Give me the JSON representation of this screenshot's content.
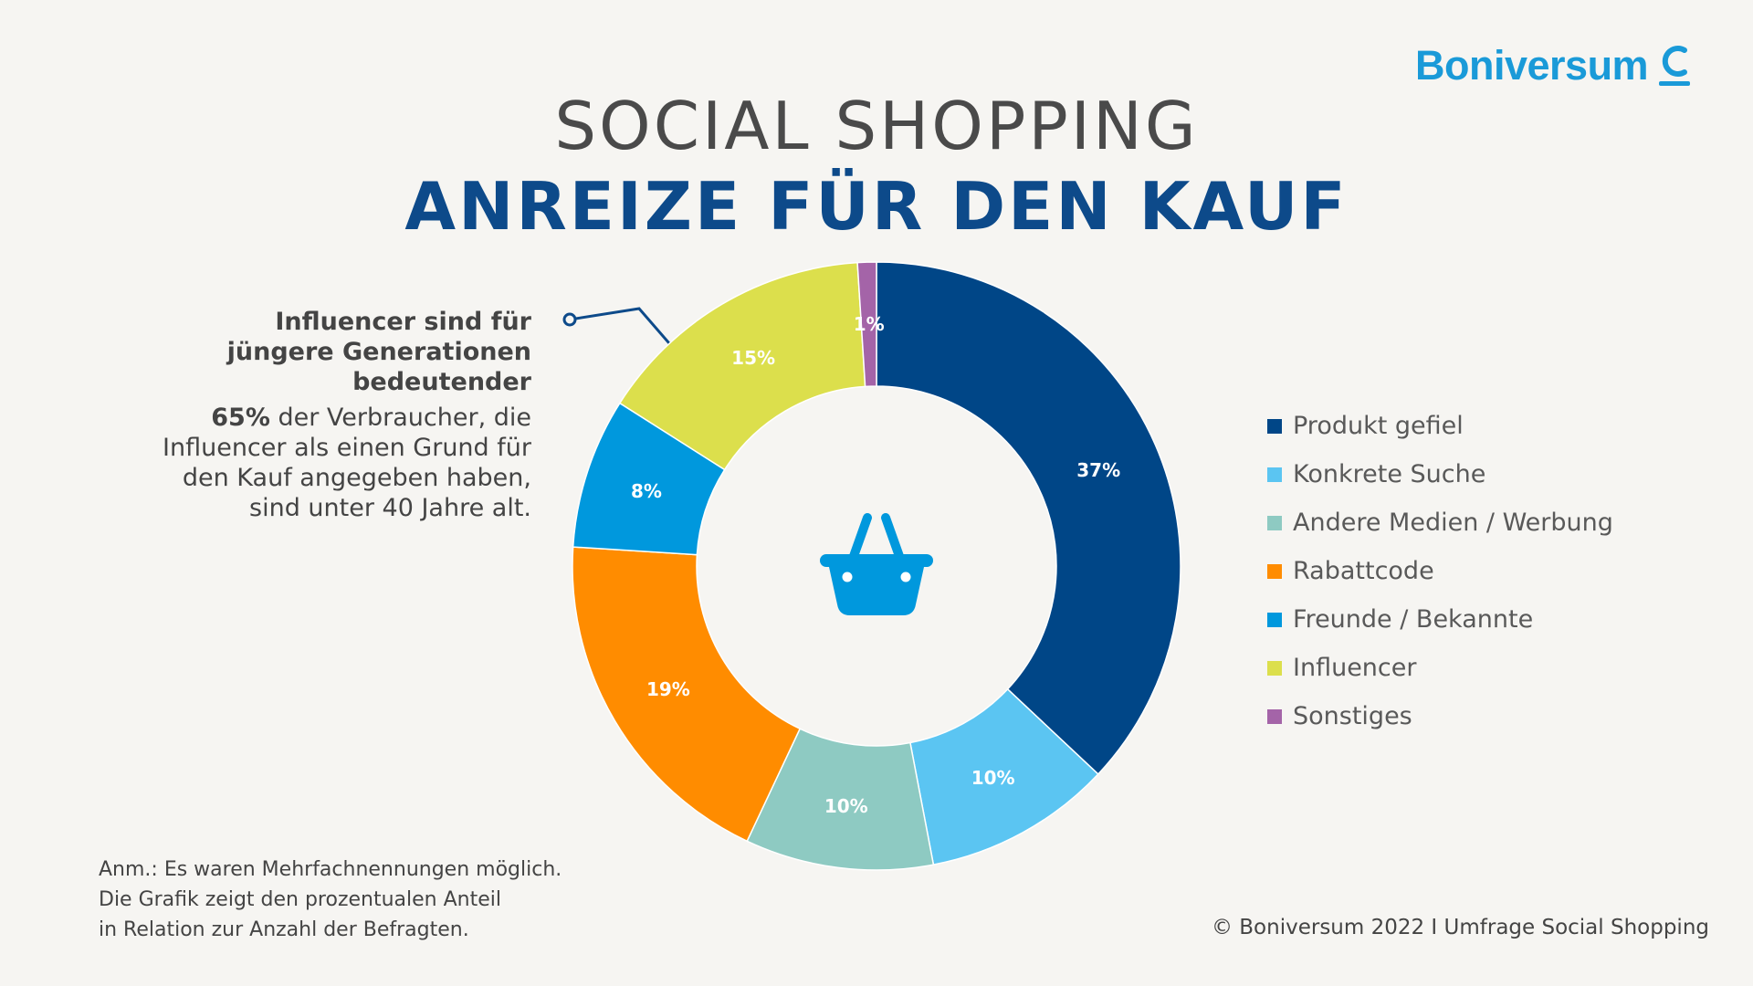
{
  "brand": {
    "name": "Boniversum",
    "color": "#1a9ad8"
  },
  "title": {
    "line1": "SOCIAL SHOPPING",
    "line2": "ANREIZE FÜR DEN KAUF"
  },
  "callout": {
    "headline": [
      "Influencer sind für",
      "jüngere Generationen",
      "bedeutender"
    ],
    "stat": "65%",
    "body_lines": [
      " der Verbraucher, die",
      "Influencer als einen Grund für",
      "den Kauf angegeben haben,",
      "sind unter 40 Jahre alt."
    ]
  },
  "chart_data": {
    "type": "pie",
    "style": "donut",
    "center_icon": "shopping-basket-icon",
    "legend_position": "right",
    "series": [
      {
        "name": "Produkt gefiel",
        "value": 37,
        "label": "37%",
        "color": "#004687"
      },
      {
        "name": "Konkrete Suche",
        "value": 10,
        "label": "10%",
        "color": "#5bc5f2"
      },
      {
        "name": "Andere Medien / Werbung",
        "value": 10,
        "label": "10%",
        "color": "#8ecac2"
      },
      {
        "name": "Rabattcode",
        "value": 19,
        "label": "19%",
        "color": "#ff8c00"
      },
      {
        "name": "Freunde / Bekannte",
        "value": 8,
        "label": "8%",
        "color": "#0098dd"
      },
      {
        "name": "Influencer",
        "value": 15,
        "label": "15%",
        "color": "#dcdf4c"
      },
      {
        "name": "Sonstiges",
        "value": 1,
        "label": "1%",
        "color": "#a464a8"
      }
    ]
  },
  "note_lines": [
    "Anm.: Es waren Mehrfachnennungen möglich.",
    "Die Grafik zeigt den prozentualen Anteil",
    "in Relation zur Anzahl der Befragten."
  ],
  "copyright": "© Boniversum 2022 I Umfrage Social Shopping"
}
